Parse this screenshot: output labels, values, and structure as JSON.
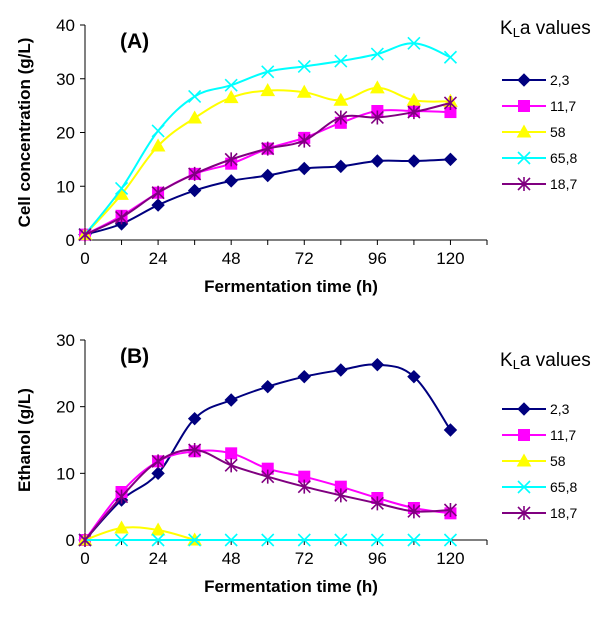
{
  "legend_title": {
    "prefix": "K",
    "sub": "L",
    "suffix": "a values"
  },
  "chart_data": [
    {
      "type": "line",
      "panel_label": "(A)",
      "xlabel": "Fermentation time (h)",
      "ylabel": "Cell concentration (g/L)",
      "xlim": [
        0,
        132
      ],
      "ylim": [
        0,
        40
      ],
      "xticks": [
        0,
        24,
        48,
        72,
        96,
        120
      ],
      "yticks": [
        0,
        10,
        20,
        30,
        40
      ],
      "legend_position": "right",
      "x": [
        0,
        12,
        24,
        36,
        48,
        60,
        72,
        84,
        96,
        108,
        120
      ],
      "series": [
        {
          "name": "2,3",
          "color": "#00007f",
          "marker": "diamond",
          "values": [
            1,
            3,
            6.5,
            9.2,
            11,
            12,
            13.3,
            13.7,
            14.7,
            14.7,
            15
          ]
        },
        {
          "name": "11,7",
          "color": "#ff00ff",
          "marker": "square",
          "values": [
            1,
            4.5,
            8.8,
            12.3,
            14.2,
            17,
            19,
            21.8,
            24,
            24,
            23.8
          ]
        },
        {
          "name": "58",
          "color": "#ffff00",
          "marker": "triangle",
          "values": [
            1,
            8.5,
            17.5,
            22.7,
            26.5,
            27.8,
            27.5,
            26,
            28.3,
            26,
            25.8
          ]
        },
        {
          "name": "65,8",
          "color": "#00ffff",
          "marker": "x",
          "values": [
            1,
            9.6,
            20.3,
            26.7,
            28.8,
            31.3,
            32.3,
            33.3,
            34.6,
            36.6,
            34
          ]
        },
        {
          "name": "18,7",
          "color": "#800080",
          "marker": "asterisk",
          "values": [
            1,
            4.2,
            8.8,
            12.3,
            15,
            17,
            18.5,
            22.8,
            22.8,
            23.8,
            25.5
          ]
        }
      ]
    },
    {
      "type": "line",
      "panel_label": "(B)",
      "xlabel": "Fermentation time (h)",
      "ylabel": "Ethanol (g/L)",
      "xlim": [
        0,
        132
      ],
      "ylim": [
        0,
        30
      ],
      "xticks": [
        0,
        24,
        48,
        72,
        96,
        120
      ],
      "yticks": [
        0,
        10,
        20,
        30
      ],
      "legend_position": "right",
      "x": [
        0,
        12,
        24,
        36,
        48,
        60,
        72,
        84,
        96,
        108,
        120
      ],
      "series": [
        {
          "name": "2,3",
          "color": "#00007f",
          "marker": "diamond",
          "values": [
            0,
            6,
            10,
            18.2,
            21,
            23,
            24.5,
            25.5,
            26.3,
            24.5,
            16.5
          ]
        },
        {
          "name": "11,7",
          "color": "#ff00ff",
          "marker": "square",
          "values": [
            0,
            7.2,
            11.8,
            13.3,
            13,
            10.7,
            9.5,
            8,
            6.3,
            4.8,
            4
          ]
        },
        {
          "name": "58",
          "color": "#ffff00",
          "marker": "triangle",
          "x": [
            0,
            12,
            24,
            36
          ],
          "values": [
            0,
            1.8,
            1.5,
            0
          ]
        },
        {
          "name": "65,8",
          "color": "#00ffff",
          "marker": "x",
          "values": [
            0,
            0,
            0,
            0,
            0,
            0,
            0,
            0,
            0,
            0,
            0
          ]
        },
        {
          "name": "18,7",
          "color": "#800080",
          "marker": "asterisk",
          "values": [
            0,
            6.5,
            11.8,
            13.5,
            11.2,
            9.5,
            8,
            6.7,
            5.5,
            4.3,
            4.5
          ]
        }
      ]
    }
  ]
}
